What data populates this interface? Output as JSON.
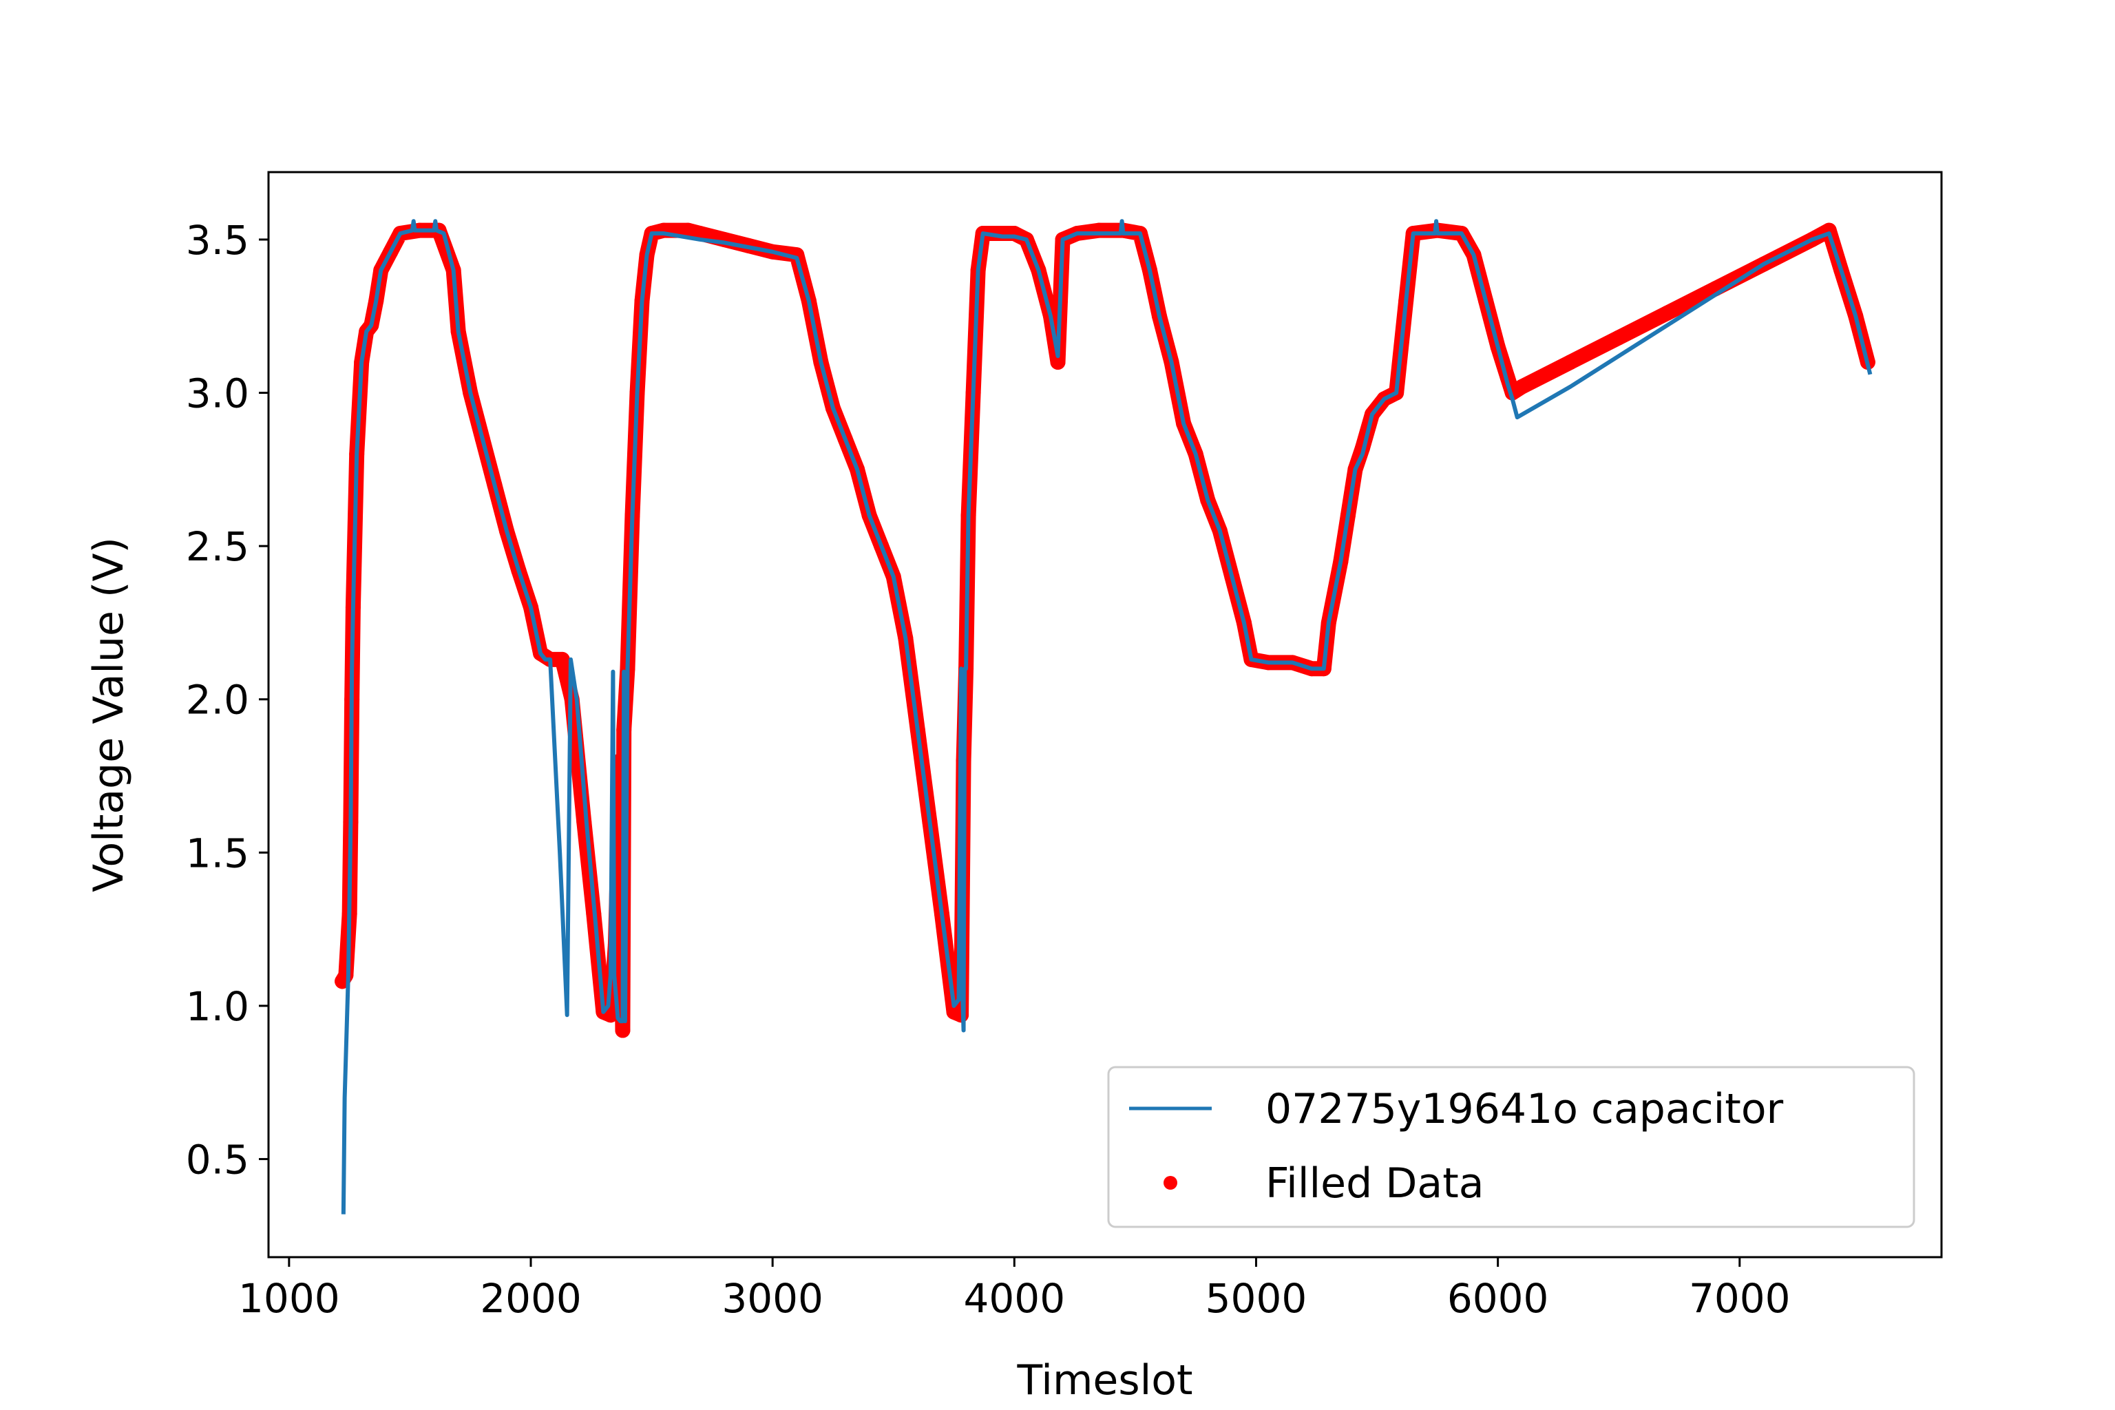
{
  "chart_data": {
    "type": "line",
    "xlabel": "Timeslot",
    "ylabel": "Voltage Value (V)",
    "xlim": [
      915,
      7835
    ],
    "ylim": [
      0.18,
      3.72
    ],
    "xticks": [
      1000,
      2000,
      3000,
      4000,
      5000,
      6000,
      7000
    ],
    "yticks": [
      0.5,
      1.0,
      1.5,
      2.0,
      2.5,
      3.0,
      3.5
    ],
    "xtick_labels": [
      "1000",
      "2000",
      "3000",
      "4000",
      "5000",
      "6000",
      "7000"
    ],
    "ytick_labels": [
      "0.5",
      "1.0",
      "1.5",
      "2.0",
      "2.5",
      "3.0",
      "3.5"
    ],
    "grid": false,
    "legend_position": "lower-right",
    "series": [
      {
        "name": "Filled Data",
        "kind": "scatter",
        "color": "#ff0000",
        "points": [
          [
            1220,
            1.08
          ],
          [
            1235,
            1.1
          ],
          [
            1250,
            1.3
          ],
          [
            1255,
            1.6
          ],
          [
            1260,
            2.0
          ],
          [
            1265,
            2.3
          ],
          [
            1280,
            2.8
          ],
          [
            1300,
            3.1
          ],
          [
            1320,
            3.2
          ],
          [
            1340,
            3.22
          ],
          [
            1360,
            3.3
          ],
          [
            1380,
            3.4
          ],
          [
            1420,
            3.46
          ],
          [
            1460,
            3.52
          ],
          [
            1540,
            3.53
          ],
          [
            1620,
            3.53
          ],
          [
            1680,
            3.4
          ],
          [
            1700,
            3.2
          ],
          [
            1750,
            3.0
          ],
          [
            1800,
            2.85
          ],
          [
            1850,
            2.7
          ],
          [
            1900,
            2.55
          ],
          [
            1950,
            2.42
          ],
          [
            2000,
            2.3
          ],
          [
            2040,
            2.15
          ],
          [
            2080,
            2.13
          ],
          [
            2130,
            2.13
          ],
          [
            2170,
            2.0
          ],
          [
            2220,
            1.6
          ],
          [
            2260,
            1.3
          ],
          [
            2300,
            0.98
          ],
          [
            2330,
            0.97
          ],
          [
            2350,
            1.2
          ],
          [
            2360,
            1.5
          ],
          [
            2370,
            1.8
          ],
          [
            2380,
            0.92
          ],
          [
            2385,
            1.9
          ],
          [
            2400,
            2.1
          ],
          [
            2420,
            2.6
          ],
          [
            2440,
            3.0
          ],
          [
            2460,
            3.3
          ],
          [
            2480,
            3.45
          ],
          [
            2500,
            3.52
          ],
          [
            2550,
            3.53
          ],
          [
            2650,
            3.53
          ],
          [
            2700,
            3.52
          ],
          [
            2800,
            3.5
          ],
          [
            2900,
            3.48
          ],
          [
            3000,
            3.46
          ],
          [
            3100,
            3.45
          ],
          [
            3150,
            3.3
          ],
          [
            3200,
            3.1
          ],
          [
            3250,
            2.95
          ],
          [
            3300,
            2.85
          ],
          [
            3350,
            2.75
          ],
          [
            3400,
            2.6
          ],
          [
            3450,
            2.5
          ],
          [
            3500,
            2.4
          ],
          [
            3550,
            2.2
          ],
          [
            3600,
            1.9
          ],
          [
            3650,
            1.6
          ],
          [
            3700,
            1.3
          ],
          [
            3750,
            0.98
          ],
          [
            3780,
            0.97
          ],
          [
            3790,
            1.8
          ],
          [
            3800,
            2.1
          ],
          [
            3810,
            2.6
          ],
          [
            3830,
            3.0
          ],
          [
            3850,
            3.4
          ],
          [
            3870,
            3.52
          ],
          [
            3950,
            3.52
          ],
          [
            4000,
            3.52
          ],
          [
            4050,
            3.5
          ],
          [
            4100,
            3.4
          ],
          [
            4150,
            3.25
          ],
          [
            4180,
            3.1
          ],
          [
            4200,
            3.5
          ],
          [
            4260,
            3.52
          ],
          [
            4350,
            3.53
          ],
          [
            4450,
            3.53
          ],
          [
            4520,
            3.52
          ],
          [
            4560,
            3.4
          ],
          [
            4600,
            3.25
          ],
          [
            4650,
            3.1
          ],
          [
            4700,
            2.9
          ],
          [
            4750,
            2.8
          ],
          [
            4800,
            2.65
          ],
          [
            4850,
            2.55
          ],
          [
            4900,
            2.4
          ],
          [
            4950,
            2.25
          ],
          [
            4980,
            2.13
          ],
          [
            5050,
            2.12
          ],
          [
            5150,
            2.12
          ],
          [
            5230,
            2.1
          ],
          [
            5280,
            2.1
          ],
          [
            5300,
            2.25
          ],
          [
            5350,
            2.45
          ],
          [
            5380,
            2.6
          ],
          [
            5410,
            2.75
          ],
          [
            5440,
            2.82
          ],
          [
            5480,
            2.93
          ],
          [
            5530,
            2.98
          ],
          [
            5580,
            3.0
          ],
          [
            5620,
            3.3
          ],
          [
            5650,
            3.52
          ],
          [
            5750,
            3.53
          ],
          [
            5850,
            3.52
          ],
          [
            5900,
            3.45
          ],
          [
            5950,
            3.3
          ],
          [
            6000,
            3.15
          ],
          [
            6040,
            3.05
          ],
          [
            6060,
            3.0
          ],
          [
            6100,
            3.02
          ],
          [
            6300,
            3.1
          ],
          [
            6500,
            3.18
          ],
          [
            6700,
            3.26
          ],
          [
            6900,
            3.34
          ],
          [
            7100,
            3.42
          ],
          [
            7300,
            3.5
          ],
          [
            7370,
            3.53
          ],
          [
            7420,
            3.4
          ],
          [
            7480,
            3.25
          ],
          [
            7530,
            3.1
          ]
        ]
      },
      {
        "name": "07275y19641o capacitor",
        "kind": "line",
        "color": "#1f77b4",
        "points": [
          [
            1225,
            0.32
          ],
          [
            1230,
            0.7
          ],
          [
            1245,
            1.1
          ],
          [
            1255,
            1.6
          ],
          [
            1260,
            2.1
          ],
          [
            1265,
            2.3
          ],
          [
            1280,
            2.8
          ],
          [
            1300,
            3.1
          ],
          [
            1320,
            3.2
          ],
          [
            1340,
            3.22
          ],
          [
            1360,
            3.3
          ],
          [
            1380,
            3.4
          ],
          [
            1420,
            3.46
          ],
          [
            1460,
            3.52
          ],
          [
            1510,
            3.53
          ],
          [
            1515,
            3.56
          ],
          [
            1520,
            3.53
          ],
          [
            1600,
            3.53
          ],
          [
            1605,
            3.56
          ],
          [
            1610,
            3.53
          ],
          [
            1640,
            3.52
          ],
          [
            1680,
            3.4
          ],
          [
            1700,
            3.2
          ],
          [
            1750,
            3.0
          ],
          [
            1800,
            2.85
          ],
          [
            1850,
            2.7
          ],
          [
            1900,
            2.55
          ],
          [
            1950,
            2.42
          ],
          [
            2000,
            2.3
          ],
          [
            2040,
            2.15
          ],
          [
            2060,
            2.13
          ],
          [
            2080,
            2.13
          ],
          [
            2120,
            1.5
          ],
          [
            2150,
            0.97
          ],
          [
            2165,
            2.13
          ],
          [
            2190,
            2.0
          ],
          [
            2230,
            1.6
          ],
          [
            2270,
            1.25
          ],
          [
            2300,
            0.98
          ],
          [
            2320,
            1.0
          ],
          [
            2330,
            1.1
          ],
          [
            2340,
            2.09
          ],
          [
            2345,
            1.1
          ],
          [
            2360,
            0.96
          ],
          [
            2370,
            0.95
          ],
          [
            2380,
            0.95
          ],
          [
            2385,
            2.09
          ],
          [
            2390,
            0.95
          ],
          [
            2400,
            2.1
          ],
          [
            2420,
            2.6
          ],
          [
            2440,
            3.0
          ],
          [
            2460,
            3.3
          ],
          [
            2480,
            3.45
          ],
          [
            2500,
            3.52
          ],
          [
            2550,
            3.52
          ],
          [
            2700,
            3.5
          ],
          [
            2800,
            3.49
          ],
          [
            3000,
            3.46
          ],
          [
            3100,
            3.44
          ],
          [
            3150,
            3.3
          ],
          [
            3200,
            3.1
          ],
          [
            3250,
            2.95
          ],
          [
            3300,
            2.85
          ],
          [
            3350,
            2.75
          ],
          [
            3400,
            2.6
          ],
          [
            3450,
            2.5
          ],
          [
            3500,
            2.4
          ],
          [
            3550,
            2.2
          ],
          [
            3600,
            1.9
          ],
          [
            3650,
            1.6
          ],
          [
            3700,
            1.3
          ],
          [
            3750,
            1.0
          ],
          [
            3770,
            1.02
          ],
          [
            3780,
            2.1
          ],
          [
            3785,
            1.05
          ],
          [
            3790,
            0.92
          ],
          [
            3795,
            2.1
          ],
          [
            3800,
            2.1
          ],
          [
            3810,
            2.6
          ],
          [
            3830,
            3.0
          ],
          [
            3850,
            3.4
          ],
          [
            3870,
            3.52
          ],
          [
            3950,
            3.51
          ],
          [
            4000,
            3.51
          ],
          [
            4050,
            3.5
          ],
          [
            4100,
            3.4
          ],
          [
            4150,
            3.25
          ],
          [
            4180,
            3.12
          ],
          [
            4200,
            3.5
          ],
          [
            4260,
            3.52
          ],
          [
            4400,
            3.52
          ],
          [
            4440,
            3.52
          ],
          [
            4445,
            3.56
          ],
          [
            4450,
            3.52
          ],
          [
            4520,
            3.52
          ],
          [
            4560,
            3.4
          ],
          [
            4600,
            3.25
          ],
          [
            4650,
            3.1
          ],
          [
            4700,
            2.9
          ],
          [
            4750,
            2.8
          ],
          [
            4800,
            2.65
          ],
          [
            4850,
            2.55
          ],
          [
            4900,
            2.4
          ],
          [
            4950,
            2.25
          ],
          [
            4980,
            2.13
          ],
          [
            5050,
            2.12
          ],
          [
            5150,
            2.12
          ],
          [
            5230,
            2.1
          ],
          [
            5280,
            2.1
          ],
          [
            5300,
            2.25
          ],
          [
            5350,
            2.45
          ],
          [
            5380,
            2.6
          ],
          [
            5410,
            2.75
          ],
          [
            5440,
            2.8
          ],
          [
            5480,
            2.93
          ],
          [
            5530,
            2.98
          ],
          [
            5580,
            3.0
          ],
          [
            5620,
            3.3
          ],
          [
            5650,
            3.52
          ],
          [
            5740,
            3.52
          ],
          [
            5745,
            3.56
          ],
          [
            5750,
            3.52
          ],
          [
            5850,
            3.52
          ],
          [
            5900,
            3.45
          ],
          [
            5950,
            3.3
          ],
          [
            6000,
            3.15
          ],
          [
            6040,
            3.03
          ],
          [
            6060,
            2.98
          ],
          [
            6080,
            2.92
          ],
          [
            6300,
            3.02
          ],
          [
            6500,
            3.12
          ],
          [
            6700,
            3.22
          ],
          [
            6900,
            3.32
          ],
          [
            7100,
            3.42
          ],
          [
            7300,
            3.5
          ],
          [
            7370,
            3.52
          ],
          [
            7420,
            3.4
          ],
          [
            7480,
            3.25
          ],
          [
            7540,
            3.06
          ]
        ]
      }
    ]
  }
}
